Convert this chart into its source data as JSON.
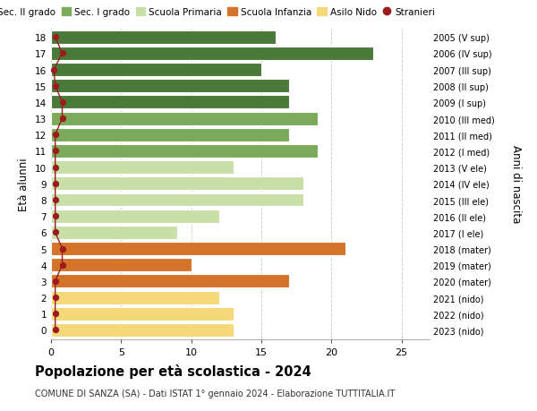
{
  "ages": [
    18,
    17,
    16,
    15,
    14,
    13,
    12,
    11,
    10,
    9,
    8,
    7,
    6,
    5,
    4,
    3,
    2,
    1,
    0
  ],
  "values": [
    16,
    23,
    15,
    17,
    17,
    19,
    17,
    19,
    13,
    18,
    18,
    12,
    9,
    21,
    10,
    17,
    12,
    13,
    13
  ],
  "stranieri": [
    0.3,
    0.8,
    0.2,
    0.3,
    0.8,
    0.8,
    0.3,
    0.3,
    0.3,
    0.3,
    0.3,
    0.3,
    0.3,
    0.8,
    0.8,
    0.3,
    0.3,
    0.3,
    0.3
  ],
  "right_labels": [
    "2005 (V sup)",
    "2006 (IV sup)",
    "2007 (III sup)",
    "2008 (II sup)",
    "2009 (I sup)",
    "2010 (III med)",
    "2011 (II med)",
    "2012 (I med)",
    "2013 (V ele)",
    "2014 (IV ele)",
    "2015 (III ele)",
    "2016 (II ele)",
    "2017 (I ele)",
    "2018 (mater)",
    "2019 (mater)",
    "2020 (mater)",
    "2021 (nido)",
    "2022 (nido)",
    "2023 (nido)"
  ],
  "colors": {
    "sec2": "#4a7a3a",
    "sec1": "#7aaa5a",
    "primaria": "#c8dfa8",
    "infanzia": "#d4732a",
    "nido": "#f5d878"
  },
  "bar_colors": [
    "#4a7a3a",
    "#4a7a3a",
    "#4a7a3a",
    "#4a7a3a",
    "#4a7a3a",
    "#7aaa5a",
    "#7aaa5a",
    "#7aaa5a",
    "#c8dfa8",
    "#c8dfa8",
    "#c8dfa8",
    "#c8dfa8",
    "#c8dfa8",
    "#d4732a",
    "#d4732a",
    "#d4732a",
    "#f5d878",
    "#f5d878",
    "#f5d878"
  ],
  "stranieri_color": "#9b1c1c",
  "title": "Popolazione per età scolastica - 2024",
  "subtitle": "COMUNE DI SANZA (SA) - Dati ISTAT 1° gennaio 2024 - Elaborazione TUTTITALIA.IT",
  "ylabel": "Età alunni",
  "ylabel_right": "Anni di nascita",
  "xlim": [
    0,
    27
  ],
  "xticks": [
    0,
    5,
    10,
    15,
    20,
    25
  ],
  "bg_color": "#ffffff",
  "grid_color": "#d0d0d0",
  "bar_height": 0.82,
  "figsize": [
    6.0,
    4.6
  ],
  "dpi": 100
}
